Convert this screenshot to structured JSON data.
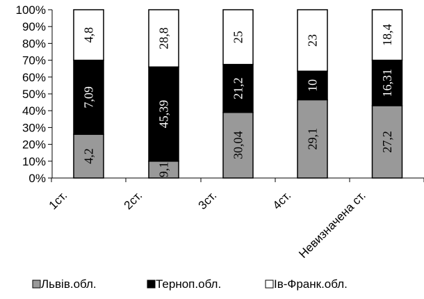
{
  "chart_data": {
    "type": "bar",
    "stacked": true,
    "normalized": true,
    "categories": [
      "1ст.",
      "2ст.",
      "3ст.",
      "4ст.",
      "Невизначена ст."
    ],
    "series": [
      {
        "name": "Львів.обл.",
        "color": "#999999",
        "label_color": "#000000",
        "labels": [
          "4,2",
          "9,1",
          "30,04",
          "29,1",
          "27,2"
        ],
        "values": [
          26,
          10,
          39,
          46.5,
          43
        ]
      },
      {
        "name": "Терноп.обл.",
        "color": "#000000",
        "label_color": "#ffffff",
        "labels": [
          "7,09",
          "45,39",
          "21,2",
          "10",
          "16,31"
        ],
        "values": [
          44,
          56,
          28.5,
          17,
          27
        ]
      },
      {
        "name": "Ів-Франк.обл.",
        "color": "#ffffff",
        "label_color": "#000000",
        "labels": [
          "4,8",
          "28,8",
          "25",
          "23",
          "18,4"
        ],
        "values": [
          30,
          34,
          32.5,
          36.5,
          30
        ]
      }
    ],
    "y_ticks": [
      "0%",
      "10%",
      "20%",
      "30%",
      "40%",
      "50%",
      "60%",
      "70%",
      "80%",
      "90%",
      "100%"
    ],
    "ylim": [
      0,
      100
    ],
    "grid": false,
    "legend_position": "bottom"
  }
}
